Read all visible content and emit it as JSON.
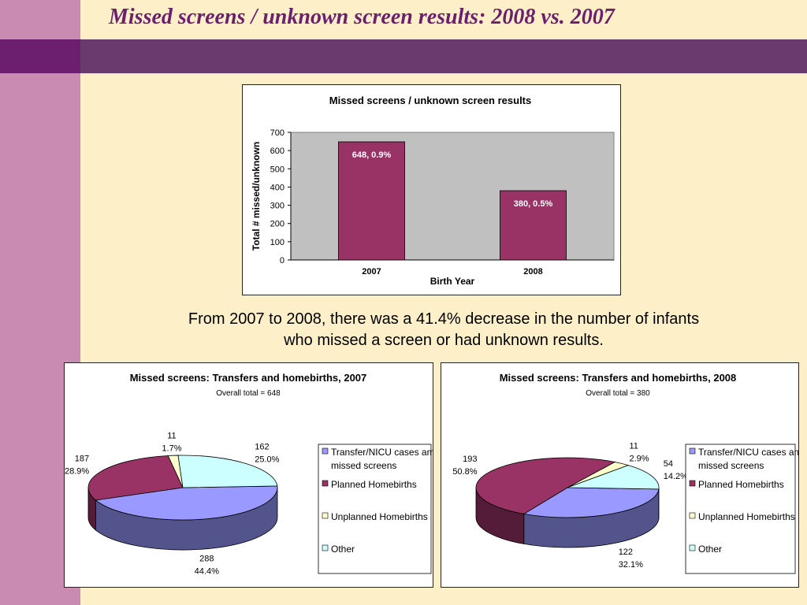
{
  "slide": {
    "title": "Missed screens / unknown screen results: 2008 vs. 2007",
    "caption_line1": "From 2007 to 2008, there was a 41.4% decrease in the number of infants",
    "caption_line2": "who missed a screen or had unknown results."
  },
  "chart_data": [
    {
      "type": "bar",
      "title": "Missed screens / unknown screen results",
      "xlabel": "Birth Year",
      "ylabel": "Total # missed/unknown",
      "categories": [
        "2007",
        "2008"
      ],
      "values": [
        648,
        380
      ],
      "data_labels": [
        "648, 0.9%",
        "380, 0.5%"
      ],
      "ylim": [
        0,
        700
      ],
      "yticks": [
        0,
        100,
        200,
        300,
        400,
        500,
        600,
        700
      ],
      "plot_background": "#c0c0c0",
      "bar_color": "#993366"
    },
    {
      "type": "pie",
      "title": "Missed screens: Transfers and homebirths, 2007",
      "subtitle": "Overall total = 648",
      "slices": [
        {
          "name": "Transfer/NICU cases among missed screens",
          "value": 288,
          "percent": "44.4%",
          "color": "#9999ff"
        },
        {
          "name": "Planned Homebirths",
          "value": 187,
          "percent": "28.9%",
          "color": "#993366"
        },
        {
          "name": "Unplanned Homebirths",
          "value": 11,
          "percent": "1.7%",
          "color": "#ffffcc"
        },
        {
          "name": "Other",
          "value": 162,
          "percent": "25.0%",
          "color": "#ccffff"
        }
      ],
      "legend": [
        "Transfer/NICU cases among missed screens",
        "Planned Homebirths",
        "Unplanned Homebirths",
        "Other"
      ]
    },
    {
      "type": "pie",
      "title": "Missed screens: Transfers and homebirths, 2008",
      "subtitle": "Overall total = 380",
      "slices": [
        {
          "name": "Transfer/NICU cases among missed screens",
          "value": 122,
          "percent": "32.1%",
          "color": "#9999ff"
        },
        {
          "name": "Planned Homebirths",
          "value": 193,
          "percent": "50.8%",
          "color": "#993366"
        },
        {
          "name": "Unplanned Homebirths",
          "value": 11,
          "percent": "2.9%",
          "color": "#ffffcc"
        },
        {
          "name": "Other",
          "value": 54,
          "percent": "14.2%",
          "color": "#ccffff"
        }
      ],
      "legend": [
        "Transfer/NICU cases among missed screens",
        "Planned Homebirths",
        "Unplanned Homebirths",
        "Other"
      ]
    }
  ]
}
